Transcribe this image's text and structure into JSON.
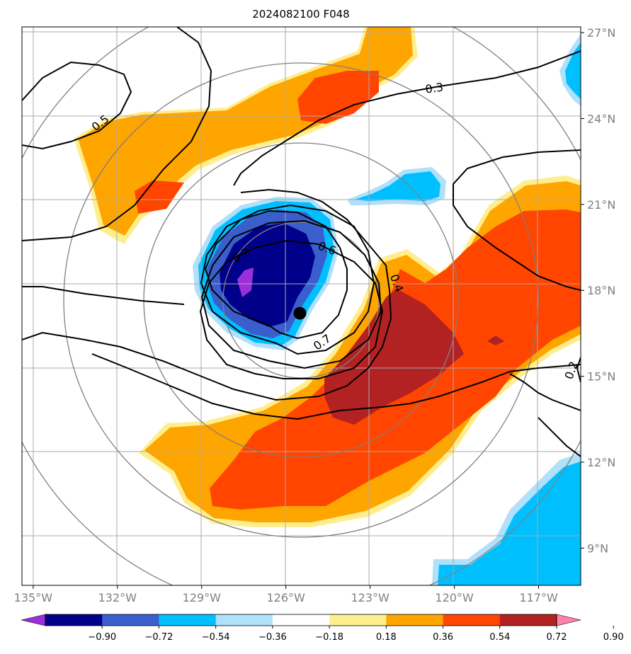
{
  "chart_data": {
    "type": "heatmap",
    "title": "2024082100 F048",
    "x_ticks": [
      "135°W",
      "132°W",
      "129°W",
      "126°W",
      "123°W",
      "120°W",
      "117°W"
    ],
    "x_values": [
      -135,
      -132,
      -129,
      -126,
      -123,
      -120,
      -117
    ],
    "y_ticks": [
      "27°N",
      "24°N",
      "21°N",
      "18°N",
      "15°N",
      "12°N",
      "9°N"
    ],
    "y_values": [
      27,
      24,
      21,
      18,
      15,
      12,
      9
    ],
    "xlim": [
      -135.4,
      -115.5
    ],
    "ylim": [
      7.7,
      27.2
    ],
    "storm_center": {
      "lon": -125.5,
      "lat": 17.2
    },
    "range_rings_deg": [
      3,
      6,
      9
    ],
    "colorbar": {
      "ticks": [
        "−0.90",
        "−0.72",
        "−0.54",
        "−0.36",
        "−0.18",
        "0.18",
        "0.36",
        "0.54",
        "0.72",
        "0.90"
      ],
      "colors": [
        "#9b30d9",
        "#00008b",
        "#3a5fcd",
        "#00bfff",
        "#b0e0fa",
        "#ffffff",
        "#ffee90",
        "#ffa500",
        "#ff4500",
        "#b22222",
        "#ff82ab"
      ],
      "extend": "both"
    },
    "contour_labels": [
      "0.3",
      "0.5",
      "0.6",
      "0.4",
      "0.7",
      "0.2",
      "0.7"
    ],
    "colors": {
      "contour": "#000000",
      "grid": "#aaaaaa",
      "ring": "#808080",
      "center": "#000000"
    }
  }
}
